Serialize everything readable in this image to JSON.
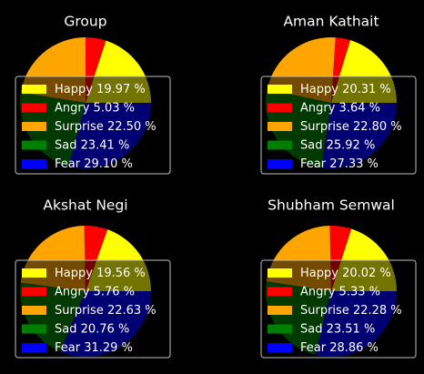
{
  "figure": {
    "background": "#000000"
  },
  "legend": {
    "placement": "lower-center",
    "frame": "#bfbfbf",
    "facecolor": "#000000"
  },
  "chart_data": [
    {
      "type": "pie",
      "title": "Group",
      "startangle_deg": 0,
      "direction": "counterclockwise",
      "series": [
        {
          "name": "Happy",
          "value": 19.97,
          "label": "Happy 19.97 %",
          "color": "#ffff00"
        },
        {
          "name": "Angry",
          "value": 5.03,
          "label": "Angry 5.03 %",
          "color": "#ff0000"
        },
        {
          "name": "Surprise",
          "value": 22.5,
          "label": "Surprise 22.50 %",
          "color": "#ffa500"
        },
        {
          "name": "Sad",
          "value": 23.41,
          "label": "Sad 23.41 %",
          "color": "#008000"
        },
        {
          "name": "Fear",
          "value": 29.1,
          "label": "Fear 29.10 %",
          "color": "#0000ff"
        }
      ]
    },
    {
      "type": "pie",
      "title": "Aman Kathait",
      "startangle_deg": 0,
      "direction": "counterclockwise",
      "series": [
        {
          "name": "Happy",
          "value": 20.31,
          "label": "Happy 20.31 %",
          "color": "#ffff00"
        },
        {
          "name": "Angry",
          "value": 3.64,
          "label": "Angry 3.64 %",
          "color": "#ff0000"
        },
        {
          "name": "Surprise",
          "value": 22.8,
          "label": "Surprise 22.80 %",
          "color": "#ffa500"
        },
        {
          "name": "Sad",
          "value": 25.92,
          "label": "Sad 25.92 %",
          "color": "#008000"
        },
        {
          "name": "Fear",
          "value": 27.33,
          "label": "Fear 27.33 %",
          "color": "#0000ff"
        }
      ]
    },
    {
      "type": "pie",
      "title": "Akshat Negi",
      "startangle_deg": 0,
      "direction": "counterclockwise",
      "series": [
        {
          "name": "Happy",
          "value": 19.56,
          "label": "Happy 19.56 %",
          "color": "#ffff00"
        },
        {
          "name": "Angry",
          "value": 5.76,
          "label": "Angry 5.76 %",
          "color": "#ff0000"
        },
        {
          "name": "Surprise",
          "value": 22.63,
          "label": "Surprise 22.63 %",
          "color": "#ffa500"
        },
        {
          "name": "Sad",
          "value": 20.76,
          "label": "Sad 20.76 %",
          "color": "#008000"
        },
        {
          "name": "Fear",
          "value": 31.29,
          "label": "Fear 31.29 %",
          "color": "#0000ff"
        }
      ]
    },
    {
      "type": "pie",
      "title": "Shubham Semwal",
      "startangle_deg": 0,
      "direction": "counterclockwise",
      "series": [
        {
          "name": "Happy",
          "value": 20.02,
          "label": "Happy 20.02 %",
          "color": "#ffff00"
        },
        {
          "name": "Angry",
          "value": 5.33,
          "label": "Angry 5.33 %",
          "color": "#ff0000"
        },
        {
          "name": "Surprise",
          "value": 22.28,
          "label": "Surprise 22.28 %",
          "color": "#ffa500"
        },
        {
          "name": "Sad",
          "value": 23.51,
          "label": "Sad 23.51 %",
          "color": "#008000"
        },
        {
          "name": "Fear",
          "value": 28.86,
          "label": "Fear 28.86 %",
          "color": "#0000ff"
        }
      ]
    }
  ]
}
